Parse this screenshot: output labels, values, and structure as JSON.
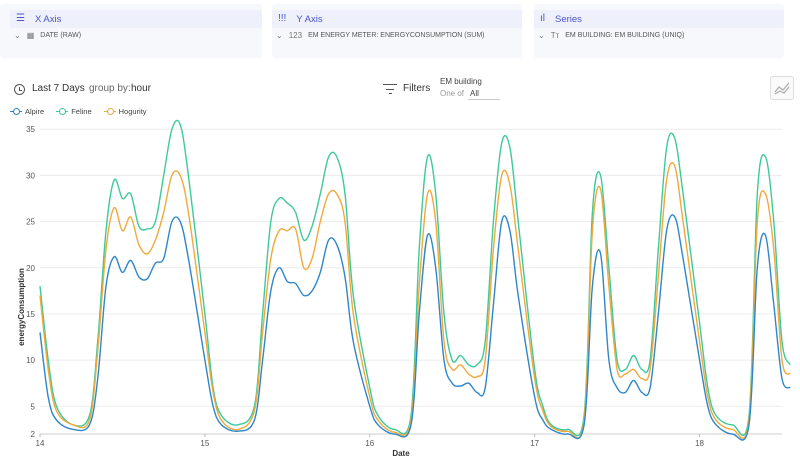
{
  "xaxis_panel": {
    "title": "X Axis",
    "icon": "list-icon",
    "field": "DATE (RAW)"
  },
  "yaxis_panel": {
    "title": "Y Axis",
    "icon": "bars-icon",
    "field_prefix": "123",
    "field": "EM ENERGY METER: ENERGYCONSUMPTION (SUM)"
  },
  "series_panel": {
    "title": "Series",
    "icon": "bar-chart-icon",
    "field_prefix": "Tт",
    "field": "EM BUILDING: EM BUILDING (UNIQ)"
  },
  "toolbar": {
    "date_range": "Last 7 Days",
    "group_by_label": "group by:",
    "group_by_value": "hour",
    "filters_label": "Filters",
    "filter_field": "EM building",
    "filter_op": "One of",
    "filter_value": "All"
  },
  "colors": {
    "accent": "#4a55c7",
    "alpire": "#2f86c9",
    "feline": "#3ec99a",
    "hogurity": "#f0a93b"
  },
  "chart_data": {
    "type": "line",
    "xlabel": "Date",
    "ylabel": "energyConsumption",
    "x_ticks": [
      "14",
      "15",
      "16",
      "17",
      "18"
    ],
    "x_range": [
      14,
      18.5
    ],
    "y_ticks": [
      2,
      5,
      10,
      15,
      20,
      25,
      30,
      35
    ],
    "ylim": [
      2,
      36
    ],
    "grid": true,
    "legend": "top-left",
    "series": [
      {
        "name": "Alpire",
        "color": "#2f86c9",
        "points": [
          [
            14.0,
            13
          ],
          [
            14.05,
            6
          ],
          [
            14.1,
            3.5
          ],
          [
            14.2,
            2.5
          ],
          [
            14.3,
            3
          ],
          [
            14.35,
            8
          ],
          [
            14.4,
            18
          ],
          [
            14.45,
            21.2
          ],
          [
            14.5,
            19.5
          ],
          [
            14.55,
            20.8
          ],
          [
            14.6,
            19
          ],
          [
            14.65,
            18.8
          ],
          [
            14.7,
            20.5
          ],
          [
            14.75,
            21
          ],
          [
            14.8,
            25
          ],
          [
            14.85,
            25
          ],
          [
            14.9,
            21
          ],
          [
            15.0,
            10
          ],
          [
            15.05,
            5
          ],
          [
            15.1,
            3
          ],
          [
            15.2,
            2.3
          ],
          [
            15.3,
            3.5
          ],
          [
            15.35,
            10
          ],
          [
            15.4,
            17.5
          ],
          [
            15.45,
            20
          ],
          [
            15.5,
            18.5
          ],
          [
            15.55,
            18.3
          ],
          [
            15.6,
            17
          ],
          [
            15.65,
            17.5
          ],
          [
            15.7,
            19.5
          ],
          [
            15.75,
            23
          ],
          [
            15.8,
            22.5
          ],
          [
            15.85,
            19
          ],
          [
            15.9,
            12
          ],
          [
            16.0,
            5
          ],
          [
            16.05,
            3
          ],
          [
            16.15,
            2
          ],
          [
            16.25,
            3
          ],
          [
            16.3,
            15
          ],
          [
            16.35,
            23.5
          ],
          [
            16.4,
            20
          ],
          [
            16.45,
            10
          ],
          [
            16.5,
            7.5
          ],
          [
            16.55,
            7.2
          ],
          [
            16.6,
            7.5
          ],
          [
            16.65,
            6.5
          ],
          [
            16.7,
            7
          ],
          [
            16.75,
            16
          ],
          [
            16.8,
            25
          ],
          [
            16.85,
            24
          ],
          [
            16.9,
            17
          ],
          [
            17.0,
            6
          ],
          [
            17.05,
            3.5
          ],
          [
            17.1,
            2.5
          ],
          [
            17.2,
            2
          ],
          [
            17.3,
            3
          ],
          [
            17.35,
            18
          ],
          [
            17.4,
            21.5
          ],
          [
            17.45,
            10
          ],
          [
            17.5,
            7
          ],
          [
            17.55,
            6.5
          ],
          [
            17.6,
            7.8
          ],
          [
            17.65,
            6.5
          ],
          [
            17.7,
            7
          ],
          [
            17.75,
            15
          ],
          [
            17.8,
            24
          ],
          [
            17.85,
            25.5
          ],
          [
            17.9,
            21
          ],
          [
            18.0,
            10
          ],
          [
            18.05,
            5
          ],
          [
            18.1,
            3
          ],
          [
            18.2,
            2
          ],
          [
            18.3,
            3
          ],
          [
            18.35,
            20
          ],
          [
            18.4,
            23.5
          ],
          [
            18.45,
            16
          ],
          [
            18.5,
            8
          ],
          [
            18.55,
            7
          ]
        ]
      },
      {
        "name": "Feline",
        "color": "#3ec99a",
        "points": [
          [
            14.0,
            18
          ],
          [
            14.05,
            10
          ],
          [
            14.1,
            5
          ],
          [
            14.2,
            3
          ],
          [
            14.3,
            4
          ],
          [
            14.35,
            12
          ],
          [
            14.4,
            24
          ],
          [
            14.45,
            29.5
          ],
          [
            14.5,
            27.5
          ],
          [
            14.55,
            28
          ],
          [
            14.6,
            24.5
          ],
          [
            14.65,
            24.2
          ],
          [
            14.7,
            25
          ],
          [
            14.75,
            30
          ],
          [
            14.8,
            35
          ],
          [
            14.85,
            35.5
          ],
          [
            14.9,
            30
          ],
          [
            15.0,
            15
          ],
          [
            15.05,
            7
          ],
          [
            15.1,
            4
          ],
          [
            15.2,
            3
          ],
          [
            15.3,
            5
          ],
          [
            15.35,
            15
          ],
          [
            15.4,
            25
          ],
          [
            15.45,
            27.5
          ],
          [
            15.5,
            27
          ],
          [
            15.55,
            26
          ],
          [
            15.6,
            23
          ],
          [
            15.65,
            24.5
          ],
          [
            15.7,
            28
          ],
          [
            15.75,
            32
          ],
          [
            15.8,
            32
          ],
          [
            15.85,
            28
          ],
          [
            15.9,
            17
          ],
          [
            16.0,
            7
          ],
          [
            16.05,
            4
          ],
          [
            16.15,
            2.5
          ],
          [
            16.25,
            4
          ],
          [
            16.3,
            22
          ],
          [
            16.35,
            32
          ],
          [
            16.4,
            28
          ],
          [
            16.45,
            15
          ],
          [
            16.5,
            10
          ],
          [
            16.55,
            10.5
          ],
          [
            16.6,
            9.5
          ],
          [
            16.65,
            9.5
          ],
          [
            16.7,
            12
          ],
          [
            16.75,
            25
          ],
          [
            16.8,
            33.5
          ],
          [
            16.85,
            33
          ],
          [
            16.9,
            25
          ],
          [
            17.0,
            9
          ],
          [
            17.05,
            5
          ],
          [
            17.1,
            3
          ],
          [
            17.2,
            2.5
          ],
          [
            17.3,
            4
          ],
          [
            17.35,
            26
          ],
          [
            17.4,
            30
          ],
          [
            17.45,
            20
          ],
          [
            17.5,
            10
          ],
          [
            17.55,
            9
          ],
          [
            17.6,
            10.5
          ],
          [
            17.65,
            9
          ],
          [
            17.7,
            10
          ],
          [
            17.75,
            22
          ],
          [
            17.8,
            33
          ],
          [
            17.85,
            34
          ],
          [
            17.9,
            28
          ],
          [
            18.0,
            14
          ],
          [
            18.05,
            7
          ],
          [
            18.1,
            4
          ],
          [
            18.2,
            3
          ],
          [
            18.3,
            4
          ],
          [
            18.35,
            28
          ],
          [
            18.4,
            32
          ],
          [
            18.45,
            25
          ],
          [
            18.5,
            12
          ],
          [
            18.55,
            9.5
          ]
        ]
      },
      {
        "name": "Hogurity",
        "color": "#f0a93b",
        "points": [
          [
            14.0,
            17
          ],
          [
            14.05,
            9
          ],
          [
            14.1,
            4.5
          ],
          [
            14.2,
            3
          ],
          [
            14.3,
            3.5
          ],
          [
            14.35,
            11
          ],
          [
            14.4,
            22
          ],
          [
            14.45,
            26.5
          ],
          [
            14.5,
            24
          ],
          [
            14.55,
            25.5
          ],
          [
            14.6,
            22.5
          ],
          [
            14.65,
            21.5
          ],
          [
            14.7,
            23
          ],
          [
            14.75,
            26
          ],
          [
            14.8,
            30
          ],
          [
            14.85,
            30
          ],
          [
            14.9,
            26
          ],
          [
            15.0,
            13
          ],
          [
            15.05,
            6.5
          ],
          [
            15.1,
            3.5
          ],
          [
            15.2,
            2.5
          ],
          [
            15.3,
            4.5
          ],
          [
            15.35,
            13
          ],
          [
            15.4,
            21
          ],
          [
            15.45,
            24
          ],
          [
            15.5,
            24
          ],
          [
            15.55,
            24.2
          ],
          [
            15.6,
            20
          ],
          [
            15.65,
            21
          ],
          [
            15.7,
            25
          ],
          [
            15.75,
            28
          ],
          [
            15.8,
            28
          ],
          [
            15.85,
            25
          ],
          [
            15.9,
            15
          ],
          [
            16.0,
            6
          ],
          [
            16.05,
            3.5
          ],
          [
            16.15,
            2.2
          ],
          [
            16.25,
            3.5
          ],
          [
            16.3,
            18
          ],
          [
            16.35,
            28
          ],
          [
            16.4,
            25
          ],
          [
            16.45,
            12
          ],
          [
            16.5,
            9
          ],
          [
            16.55,
            9.5
          ],
          [
            16.6,
            8.5
          ],
          [
            16.65,
            8.2
          ],
          [
            16.7,
            10
          ],
          [
            16.75,
            22
          ],
          [
            16.8,
            30
          ],
          [
            16.85,
            29
          ],
          [
            16.9,
            22
          ],
          [
            17.0,
            8
          ],
          [
            17.05,
            4.5
          ],
          [
            17.1,
            2.8
          ],
          [
            17.2,
            2.3
          ],
          [
            17.3,
            3.5
          ],
          [
            17.35,
            24
          ],
          [
            17.4,
            28.5
          ],
          [
            17.45,
            18
          ],
          [
            17.5,
            9
          ],
          [
            17.55,
            8.5
          ],
          [
            17.6,
            9
          ],
          [
            17.65,
            8
          ],
          [
            17.7,
            9
          ],
          [
            17.75,
            19
          ],
          [
            17.8,
            29.5
          ],
          [
            17.85,
            31
          ],
          [
            17.9,
            25
          ],
          [
            18.0,
            12
          ],
          [
            18.05,
            6
          ],
          [
            18.1,
            3.5
          ],
          [
            18.2,
            2.5
          ],
          [
            18.3,
            3.5
          ],
          [
            18.35,
            25
          ],
          [
            18.4,
            28
          ],
          [
            18.45,
            22
          ],
          [
            18.5,
            10
          ],
          [
            18.55,
            8.5
          ]
        ]
      }
    ]
  }
}
